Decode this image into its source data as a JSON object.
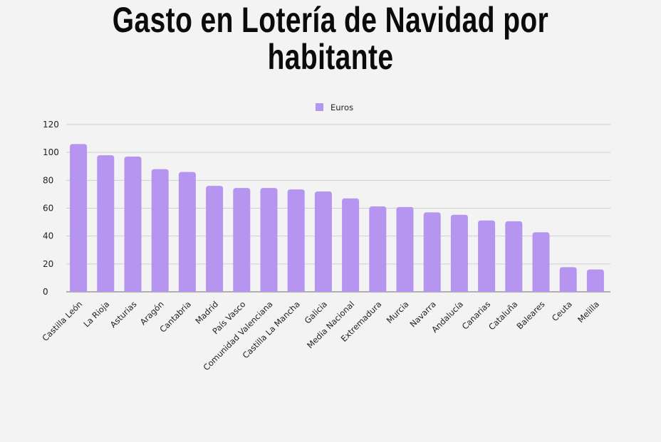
{
  "chart_data": {
    "type": "bar",
    "title": "Gasto en Lotería de Navidad por habitante",
    "xlabel": "",
    "ylabel": "",
    "ylim": [
      0,
      120
    ],
    "yticks": [
      "0",
      "20",
      "40",
      "60",
      "80",
      "100",
      "120"
    ],
    "grid": true,
    "legend_position": "top",
    "bar_color": "#b595ef",
    "categories": [
      "Castilla León",
      "La Rioja",
      "Asturias",
      "Aragón",
      "Cantabria",
      "Madrid",
      "País Vasco",
      "Comunidad Valenciana",
      "Castilla La Mancha",
      "Galicia",
      "Media Nacional",
      "Extremadura",
      "Murcia",
      "Navarra",
      "Andalucía",
      "Canarias",
      "Cataluña",
      "Baleares",
      "Ceuta",
      "Melilla"
    ],
    "series": [
      {
        "name": "Euros",
        "values": [
          106,
          98,
          97,
          88,
          86,
          76,
          74.5,
          74.5,
          73.5,
          72,
          67,
          61.3,
          60.8,
          57,
          55.3,
          51.2,
          50.6,
          42.7,
          17.7,
          16
        ]
      }
    ]
  }
}
